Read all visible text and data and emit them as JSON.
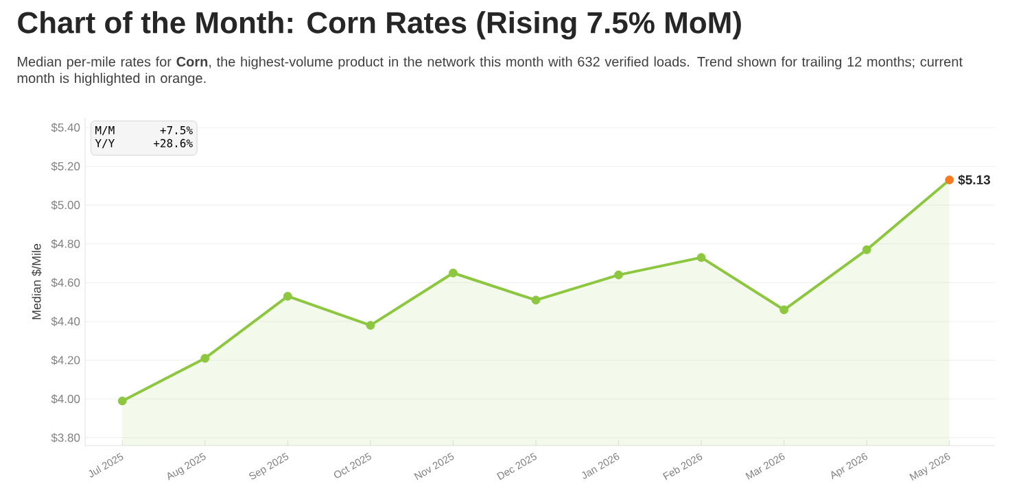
{
  "chart_data": {
    "type": "area",
    "title": "Chart of the Month: Corn Rates (Rising 7.5% MoM)",
    "subtitle": "Median per-mile rates for **Corn**, the highest-volume product in the network this month with 632 verified loads. Trend shown for trailing 12 months; current month is highlighted in orange.",
    "ylabel": "Median $/Mile",
    "categories": [
      "Jul 2025",
      "Aug 2025",
      "Sep 2025",
      "Oct 2025",
      "Nov 2025",
      "Dec 2025",
      "Jan 2026",
      "Feb 2026",
      "Mar 2026",
      "Apr 2026",
      "May 2026"
    ],
    "series": [
      {
        "color": "#8dc63f",
        "values": [
          3.99,
          4.21,
          4.53,
          4.38,
          4.65,
          4.51,
          4.64,
          4.73,
          4.46,
          4.77,
          5.13
        ],
        "colors": [
          "#8dc63f",
          "#8dc63f",
          "#8dc63f",
          "#8dc63f",
          "#8dc63f",
          "#8dc63f",
          "#8dc63f",
          "#8dc63f",
          "#8dc63f",
          "#8dc63f",
          "#f47b20"
        ],
        "value_labels": [
          null,
          null,
          null,
          null,
          null,
          null,
          null,
          null,
          null,
          null,
          "$5.13"
        ]
      }
    ],
    "ylim": [
      3.76,
      5.45
    ],
    "yticks": [
      {
        "value": 3.8,
        "label": "$3.80"
      },
      {
        "value": 4.0,
        "label": "$4.00"
      },
      {
        "value": 4.2,
        "label": "$4.20"
      },
      {
        "value": 4.4,
        "label": "$4.40"
      },
      {
        "value": 4.6,
        "label": "$4.60"
      },
      {
        "value": 4.8,
        "label": "$4.80"
      },
      {
        "value": 5.0,
        "label": "$5.00"
      },
      {
        "value": 5.2,
        "label": "$5.20"
      },
      {
        "value": 5.4,
        "label": "$5.40"
      }
    ],
    "grid": "y",
    "marker": "circle",
    "line_style": "solid",
    "annotations": [
      "M/M",
      "+7.5%",
      "Y/Y",
      "+28.6%"
    ]
  }
}
